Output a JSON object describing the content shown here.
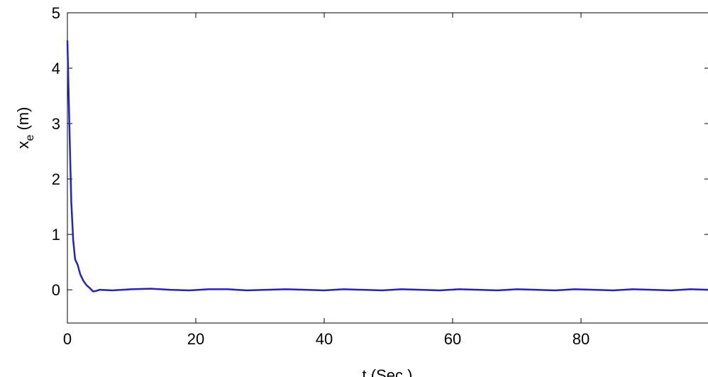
{
  "chart_data": {
    "type": "line",
    "xlabel": "t (Sec.)",
    "ylabel": {
      "main": "x",
      "subscript": "e",
      "unit": "(m)"
    },
    "x": [
      0,
      0.3,
      0.6,
      0.9,
      1.2,
      1.6,
      2,
      2.5,
      3,
      3.5,
      4,
      4.5,
      5,
      7,
      10,
      13,
      16,
      19,
      22,
      25,
      28,
      31,
      34,
      37,
      40,
      43,
      46,
      49,
      52,
      55,
      58,
      61,
      64,
      67,
      70,
      73,
      76,
      79,
      82,
      85,
      88,
      91,
      94,
      97,
      100
    ],
    "series": [
      {
        "name": "x_e",
        "color": "#2222c8",
        "values": [
          4.5,
          3.0,
          1.6,
          0.9,
          0.55,
          0.45,
          0.28,
          0.16,
          0.08,
          0.03,
          -0.03,
          -0.02,
          0.0,
          -0.01,
          0.01,
          0.02,
          0.0,
          -0.01,
          0.01,
          0.01,
          -0.01,
          0.0,
          0.01,
          0.0,
          -0.01,
          0.01,
          0.0,
          -0.01,
          0.01,
          0.0,
          -0.01,
          0.01,
          0.0,
          -0.01,
          0.01,
          0.0,
          -0.01,
          0.01,
          0.0,
          -0.01,
          0.01,
          0.0,
          -0.01,
          0.01,
          0.0
        ]
      }
    ],
    "xlim": [
      0,
      100
    ],
    "xticks": [
      0,
      20,
      40,
      60,
      80
    ],
    "ylim": [
      -0.6,
      5
    ],
    "yticks": [
      0,
      1,
      2,
      3,
      4,
      5
    ],
    "grid": false
  }
}
